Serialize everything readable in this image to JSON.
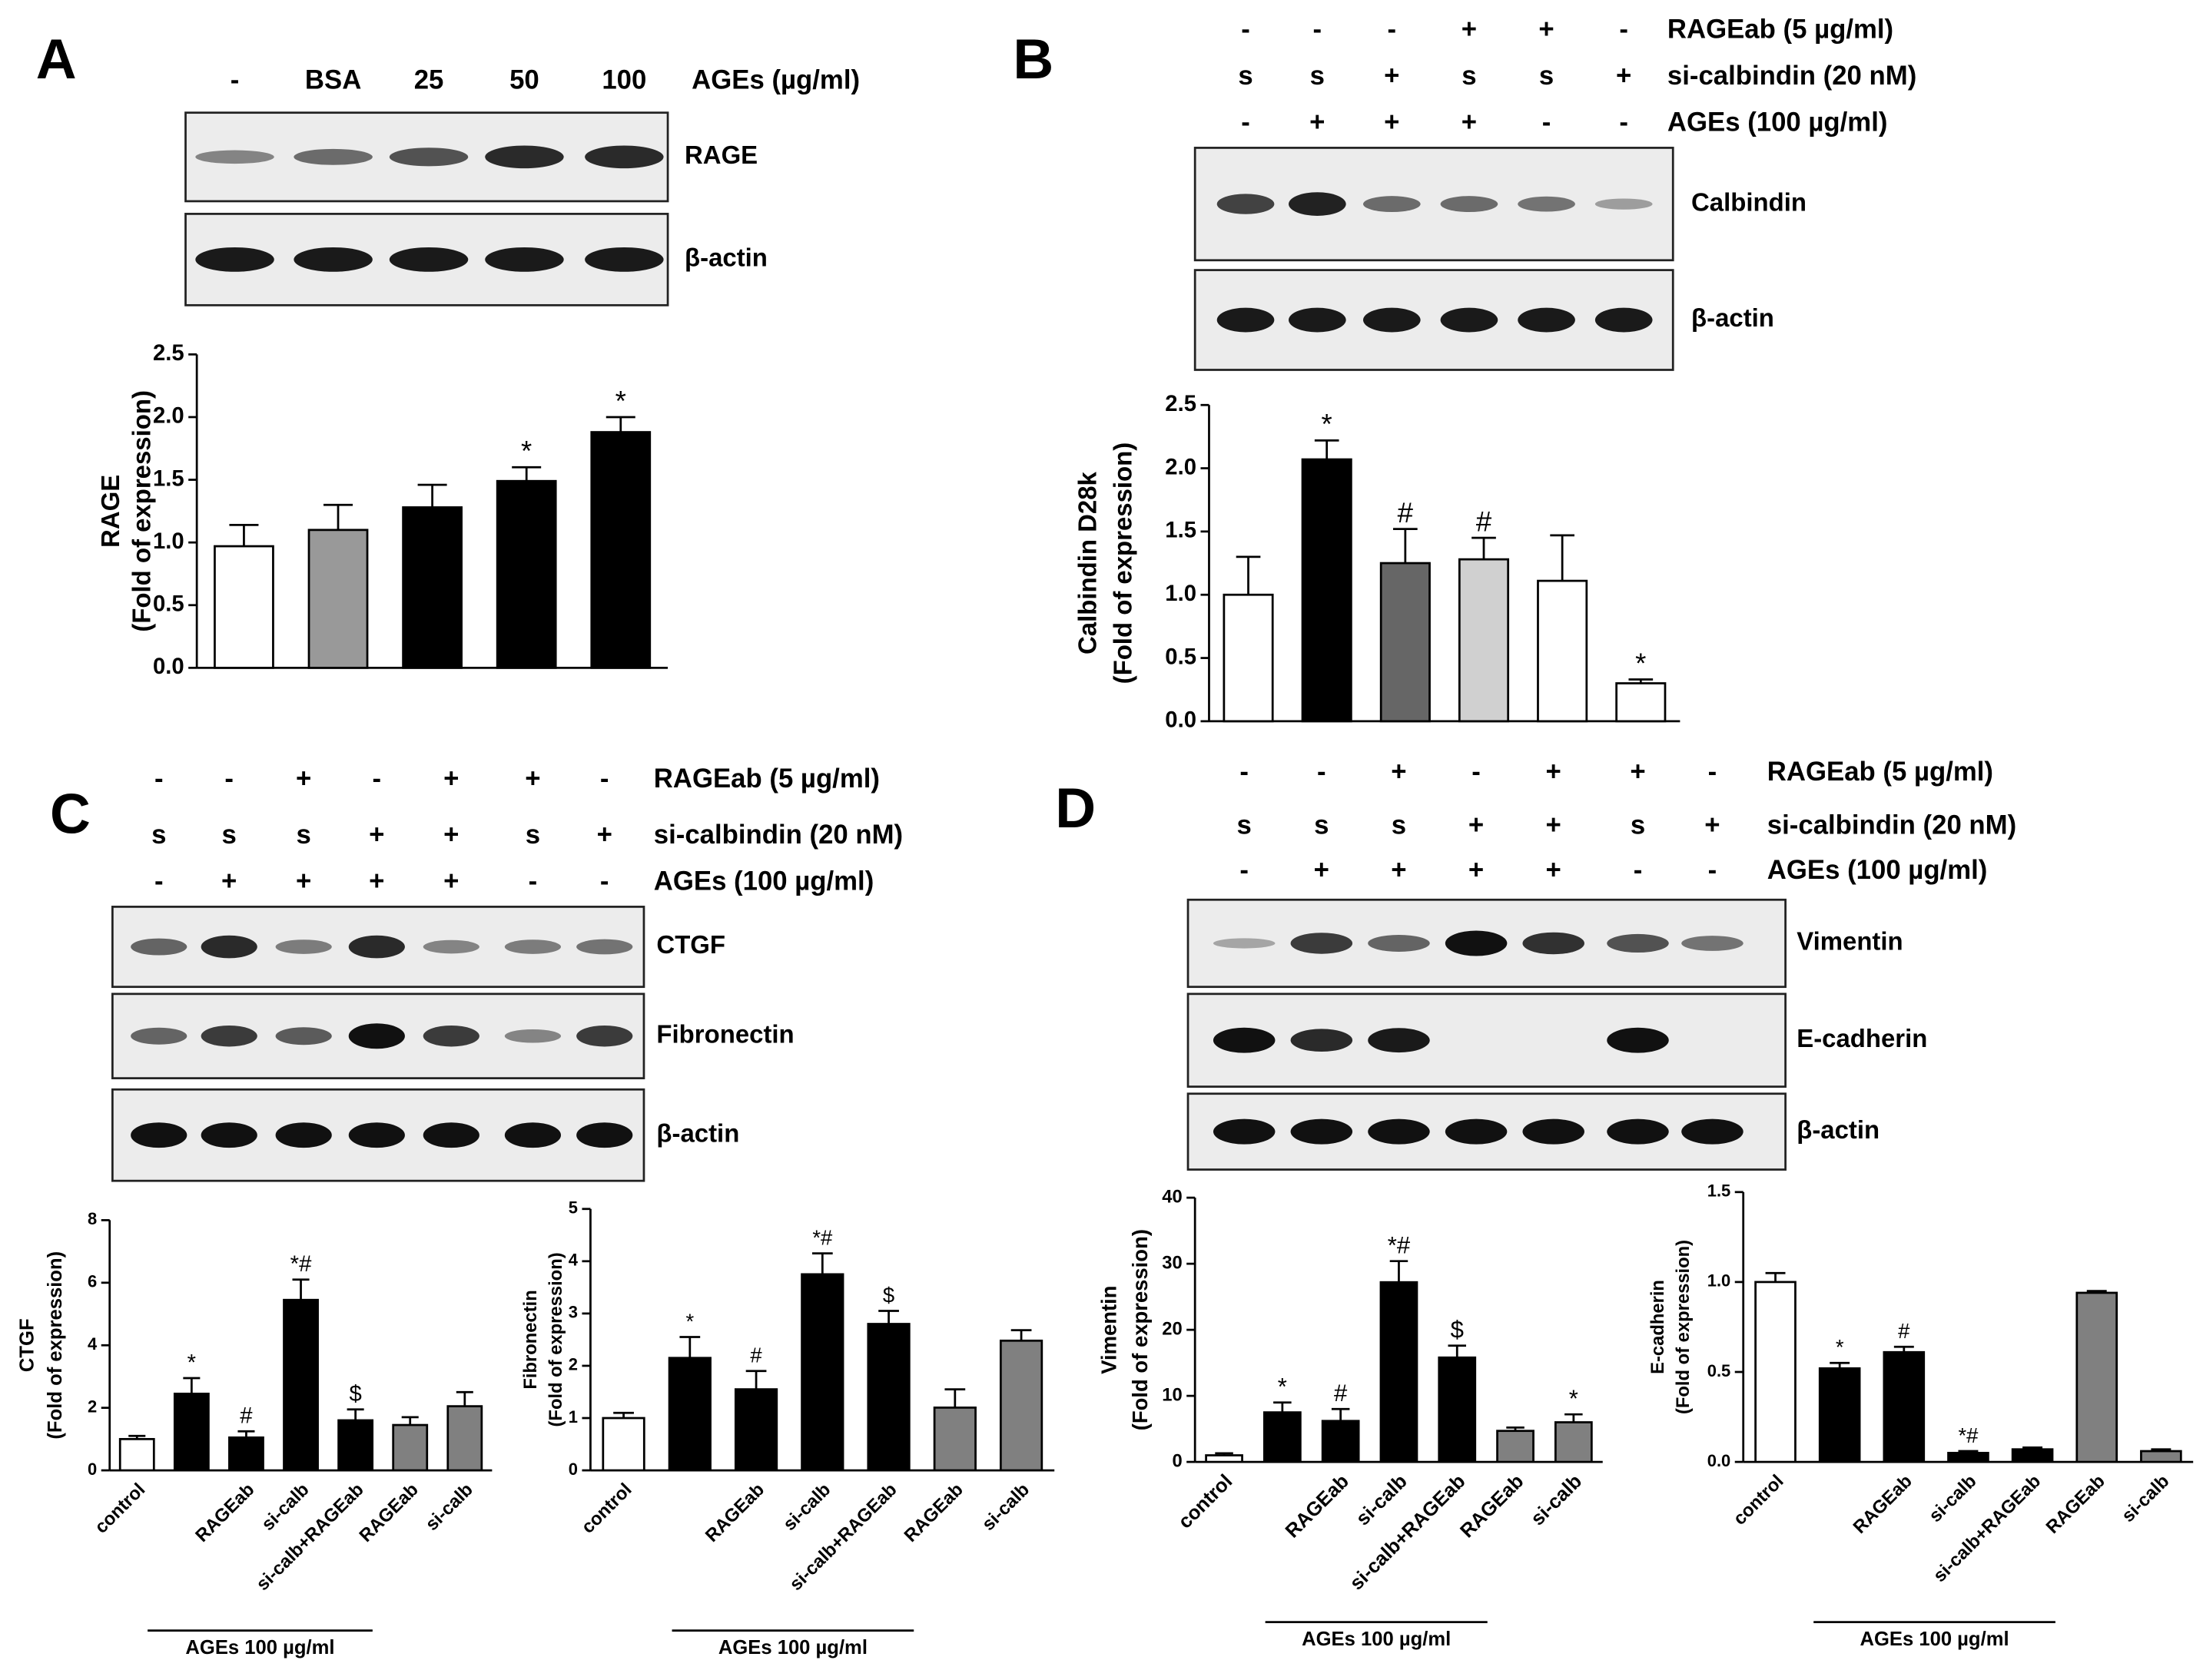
{
  "panels": [
    {
      "letter": "A",
      "conditions": [
        {
          "label": "AGEs (µg/ml)",
          "marks": [
            "-",
            "BSA",
            "25",
            "50",
            "100"
          ]
        }
      ],
      "blots": [
        "RAGE",
        "β-actin"
      ]
    },
    {
      "letter": "B",
      "conditions": [
        {
          "label": "RAGEab (5 µg/ml)",
          "marks": [
            "-",
            "-",
            "-",
            "+",
            "+",
            "-"
          ]
        },
        {
          "label": "si-calbindin (20 nM)",
          "marks": [
            "s",
            "s",
            "+",
            "s",
            "s",
            "+"
          ]
        },
        {
          "label": "AGEs (100 µg/ml)",
          "marks": [
            "-",
            "+",
            "+",
            "+",
            "-",
            "-"
          ]
        }
      ],
      "blots": [
        "Calbindin",
        "β-actin"
      ]
    },
    {
      "letter": "C",
      "conditions": [
        {
          "label": "RAGEab (5 µg/ml)",
          "marks": [
            "-",
            "-",
            "+",
            "-",
            "+",
            "+",
            "-"
          ]
        },
        {
          "label": "si-calbindin (20 nM)",
          "marks": [
            "s",
            "s",
            "s",
            "+",
            "+",
            "s",
            "+"
          ]
        },
        {
          "label": "AGEs (100 µg/ml)",
          "marks": [
            "-",
            "+",
            "+",
            "+",
            "+",
            "-",
            "-"
          ]
        }
      ],
      "blots": [
        "CTGF",
        "Fibronectin",
        "β-actin"
      ]
    },
    {
      "letter": "D",
      "conditions": [
        {
          "label": "RAGEab (5 µg/ml)",
          "marks": [
            "-",
            "-",
            "+",
            "-",
            "+",
            "+",
            "-"
          ]
        },
        {
          "label": "si-calbindin (20 nM)",
          "marks": [
            "s",
            "s",
            "s",
            "+",
            "+",
            "s",
            "+"
          ]
        },
        {
          "label": "AGEs (100 µg/ml)",
          "marks": [
            "-",
            "+",
            "+",
            "+",
            "+",
            "-",
            "-"
          ]
        }
      ],
      "blots": [
        "Vimentin",
        "E-cadherin",
        "β-actin"
      ]
    }
  ],
  "chart_data": [
    {
      "type": "bar",
      "y_label": [
        "RAGE",
        "(Fold of expression)"
      ],
      "categories": [
        null,
        null,
        null,
        null,
        null
      ],
      "values": [
        0.97,
        1.1,
        1.28,
        1.49,
        1.88
      ],
      "errors": [
        0.17,
        0.2,
        0.18,
        0.11,
        0.12
      ],
      "annotations": [
        null,
        null,
        null,
        "*",
        "*"
      ],
      "colors": [
        "#ffffff",
        "#999999",
        "#000000",
        "#000000",
        "#000000"
      ],
      "ylim": [
        0,
        2.5
      ],
      "yticks": [
        {
          "value": 0,
          "label": "0.0"
        },
        {
          "value": 0.5,
          "label": "0.5"
        },
        {
          "value": 1,
          "label": "1.0"
        },
        {
          "value": 1.5,
          "label": "1.5"
        },
        {
          "value": 2,
          "label": "2.0"
        },
        {
          "value": 2.5,
          "label": "2.5"
        }
      ]
    },
    {
      "type": "bar",
      "y_label": [
        "Calbindin D28k",
        "(Fold of expression)"
      ],
      "categories": [
        null,
        null,
        null,
        null,
        null,
        null
      ],
      "values": [
        1.0,
        2.07,
        1.25,
        1.28,
        1.11,
        0.3
      ],
      "errors": [
        0.3,
        0.15,
        0.27,
        0.17,
        0.36,
        0.03
      ],
      "annotations": [
        null,
        "*",
        "#",
        "#",
        null,
        "*"
      ],
      "colors": [
        "#ffffff",
        "#000000",
        "#666666",
        "#d0d0d0",
        "#ffffff",
        "#ffffff"
      ],
      "ylim": [
        0,
        2.5
      ],
      "yticks": [
        {
          "value": 0,
          "label": "0.0"
        },
        {
          "value": 0.5,
          "label": "0.5"
        },
        {
          "value": 1,
          "label": "1.0"
        },
        {
          "value": 1.5,
          "label": "1.5"
        },
        {
          "value": 2,
          "label": "2.0"
        },
        {
          "value": 2.5,
          "label": "2.5"
        }
      ]
    },
    {
      "type": "bar",
      "y_label": [
        "CTGF",
        "(Fold of expression)"
      ],
      "categories": [
        "control",
        null,
        "RAGEab",
        "si-calb",
        "si-calb+RAGEab",
        "RAGEab",
        "si-calb"
      ],
      "values": [
        1.0,
        2.45,
        1.05,
        5.45,
        1.6,
        1.45,
        2.05
      ],
      "errors": [
        0.1,
        0.5,
        0.2,
        0.65,
        0.35,
        0.25,
        0.45
      ],
      "annotations": [
        null,
        "*",
        "#",
        "*#",
        "$",
        null,
        null
      ],
      "colors": [
        "#ffffff",
        "#000000",
        "#000000",
        "#000000",
        "#000000",
        "#808080",
        "#808080"
      ],
      "ylim": [
        0,
        8
      ],
      "yticks": [
        0,
        2,
        4,
        6,
        8
      ],
      "bracket_label": "AGEs 100 µg/ml"
    },
    {
      "type": "bar",
      "y_label": [
        "Fibronectin",
        "(Fold of expression)"
      ],
      "categories": [
        "control",
        null,
        "RAGEab",
        "si-calb",
        "si-calb+RAGEab",
        "RAGEab",
        "si-calb"
      ],
      "values": [
        1.0,
        2.15,
        1.55,
        3.75,
        2.8,
        1.2,
        2.48
      ],
      "errors": [
        0.1,
        0.4,
        0.35,
        0.4,
        0.25,
        0.35,
        0.2
      ],
      "annotations": [
        null,
        "*",
        "#",
        "*#",
        "$",
        null,
        null
      ],
      "colors": [
        "#ffffff",
        "#000000",
        "#000000",
        "#000000",
        "#000000",
        "#808080",
        "#808080"
      ],
      "ylim": [
        0,
        5
      ],
      "yticks": [
        0,
        1,
        2,
        3,
        4,
        5
      ],
      "bracket_label": "AGEs 100 µg/ml"
    },
    {
      "type": "bar",
      "y_label": [
        "Vimentin",
        "(Fold of expression)"
      ],
      "categories": [
        "control",
        null,
        "RAGEab",
        "si-calb",
        "si-calb+RAGEab",
        "RAGEab",
        "si-calb"
      ],
      "values": [
        1.0,
        7.5,
        6.2,
        27.2,
        15.8,
        4.7,
        6.0
      ],
      "errors": [
        0.3,
        1.5,
        1.8,
        3.2,
        1.8,
        0.5,
        1.2
      ],
      "annotations": [
        null,
        "*",
        "#",
        "*#",
        "$",
        null,
        "*"
      ],
      "colors": [
        "#ffffff",
        "#000000",
        "#000000",
        "#000000",
        "#000000",
        "#808080",
        "#808080"
      ],
      "ylim": [
        0,
        40
      ],
      "yticks": [
        0,
        10,
        20,
        30,
        40
      ],
      "bracket_label": "AGEs 100 µg/ml"
    },
    {
      "type": "bar",
      "y_label": [
        "E-cadherin",
        "(Fold of expression)"
      ],
      "categories": [
        "control",
        null,
        "RAGEab",
        "si-calb",
        "si-calb+RAGEab",
        "RAGEab",
        "si-calb"
      ],
      "values": [
        1.0,
        0.52,
        0.61,
        0.05,
        0.07,
        0.94,
        0.06
      ],
      "errors": [
        0.05,
        0.03,
        0.03,
        0.01,
        0.01,
        0.01,
        0.01
      ],
      "annotations": [
        null,
        "*",
        "#",
        "*#",
        null,
        null,
        null
      ],
      "colors": [
        "#ffffff",
        "#000000",
        "#000000",
        "#000000",
        "#000000",
        "#808080",
        "#808080"
      ],
      "ylim": [
        0,
        1.5
      ],
      "yticks": [
        {
          "value": 0,
          "label": "0.0"
        },
        {
          "value": 0.5,
          "label": "0.5"
        },
        {
          "value": 1,
          "label": "1.0"
        },
        {
          "value": 1.5,
          "label": "1.5"
        }
      ],
      "bracket_label": "AGEs 100 µg/ml"
    }
  ]
}
